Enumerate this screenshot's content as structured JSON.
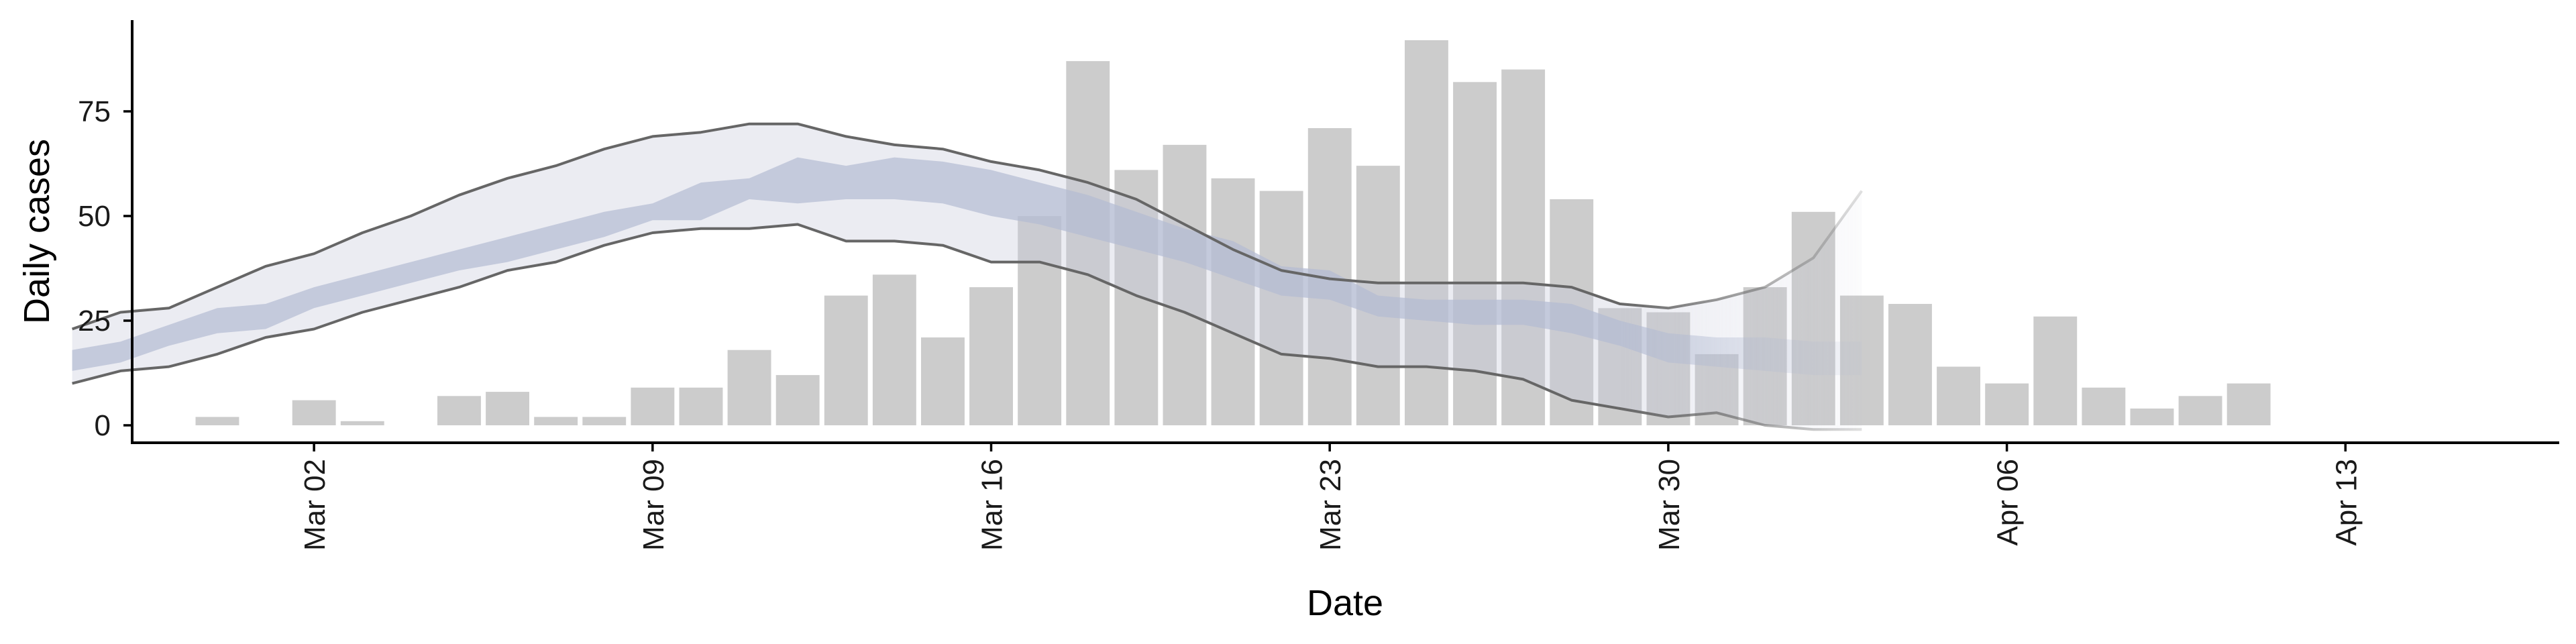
{
  "chart_data": {
    "type": "bar",
    "title": "",
    "xlabel": "Date",
    "ylabel": "Daily cases",
    "x_start_date": "2020-02-26",
    "ylim": [
      -4,
      95
    ],
    "xlim": [
      "2020-02-24",
      "2020-04-15"
    ],
    "y_ticks": [
      0,
      25,
      50,
      75
    ],
    "x_ticks": [
      {
        "date": "2020-03-02",
        "label": "Mar 02"
      },
      {
        "date": "2020-03-09",
        "label": "Mar 09"
      },
      {
        "date": "2020-03-16",
        "label": "Mar 16"
      },
      {
        "date": "2020-03-23",
        "label": "Mar 23"
      },
      {
        "date": "2020-03-30",
        "label": "Mar 30"
      },
      {
        "date": "2020-04-06",
        "label": "Apr 06"
      },
      {
        "date": "2020-04-13",
        "label": "Apr 13"
      }
    ],
    "grid": false,
    "legend": "none",
    "bars": {
      "name": "Daily cases",
      "color": "#cccccc",
      "dates": [
        "2020-02-29",
        "2020-03-01",
        "2020-03-02",
        "2020-03-03",
        "2020-03-04",
        "2020-03-05",
        "2020-03-06",
        "2020-03-07",
        "2020-03-08",
        "2020-03-09",
        "2020-03-10",
        "2020-03-11",
        "2020-03-12",
        "2020-03-13",
        "2020-03-14",
        "2020-03-15",
        "2020-03-16",
        "2020-03-17",
        "2020-03-18",
        "2020-03-19",
        "2020-03-20",
        "2020-03-21",
        "2020-03-22",
        "2020-03-23",
        "2020-03-24",
        "2020-03-25",
        "2020-03-26",
        "2020-03-27",
        "2020-03-28",
        "2020-03-29",
        "2020-03-30",
        "2020-03-31",
        "2020-04-01",
        "2020-04-02",
        "2020-04-03",
        "2020-04-04",
        "2020-04-05",
        "2020-04-06",
        "2020-04-07",
        "2020-04-08",
        "2020-04-09",
        "2020-04-10",
        "2020-04-11",
        "2020-04-12"
      ],
      "values": [
        2,
        0,
        6,
        1,
        0,
        7,
        8,
        2,
        2,
        9,
        9,
        18,
        12,
        31,
        36,
        21,
        33,
        50,
        87,
        61,
        67,
        59,
        56,
        71,
        62,
        92,
        82,
        85,
        54,
        28,
        27,
        17,
        33,
        51,
        31,
        29,
        14,
        10,
        26,
        9,
        4,
        7,
        10,
        0
      ]
    },
    "outer_band": {
      "color": "#c5c9db",
      "dates": [
        "2020-02-26",
        "2020-02-27",
        "2020-02-28",
        "2020-02-29",
        "2020-03-01",
        "2020-03-02",
        "2020-03-03",
        "2020-03-04",
        "2020-03-05",
        "2020-03-06",
        "2020-03-07",
        "2020-03-08",
        "2020-03-09",
        "2020-03-10",
        "2020-03-11",
        "2020-03-12",
        "2020-03-13",
        "2020-03-14",
        "2020-03-15",
        "2020-03-16",
        "2020-03-17",
        "2020-03-18",
        "2020-03-19",
        "2020-03-20",
        "2020-03-21",
        "2020-03-22",
        "2020-03-23",
        "2020-03-24",
        "2020-03-25",
        "2020-03-26",
        "2020-03-27",
        "2020-03-28",
        "2020-03-29",
        "2020-03-30",
        "2020-03-31",
        "2020-04-01",
        "2020-04-02",
        "2020-04-03"
      ],
      "upper": [
        23,
        27,
        28,
        33,
        38,
        41,
        46,
        50,
        55,
        59,
        62,
        66,
        69,
        70,
        72,
        72,
        69,
        67,
        66,
        63,
        61,
        58,
        54,
        48,
        42,
        37,
        35,
        34,
        34,
        34,
        34,
        33,
        29,
        28,
        30,
        33,
        40,
        56
      ],
      "lower": [
        10,
        13,
        14,
        17,
        21,
        23,
        27,
        30,
        33,
        37,
        39,
        43,
        46,
        47,
        47,
        48,
        44,
        44,
        43,
        39,
        39,
        36,
        31,
        27,
        22,
        17,
        16,
        14,
        14,
        13,
        11,
        6,
        4,
        2,
        3,
        0,
        -1,
        -1
      ]
    },
    "inner_band": {
      "color": "#b4bbd3",
      "dates": [
        "2020-02-26",
        "2020-02-27",
        "2020-02-28",
        "2020-02-29",
        "2020-03-01",
        "2020-03-02",
        "2020-03-03",
        "2020-03-04",
        "2020-03-05",
        "2020-03-06",
        "2020-03-07",
        "2020-03-08",
        "2020-03-09",
        "2020-03-10",
        "2020-03-11",
        "2020-03-12",
        "2020-03-13",
        "2020-03-14",
        "2020-03-15",
        "2020-03-16",
        "2020-03-17",
        "2020-03-18",
        "2020-03-19",
        "2020-03-20",
        "2020-03-21",
        "2020-03-22",
        "2020-03-23",
        "2020-03-24",
        "2020-03-25",
        "2020-03-26",
        "2020-03-27",
        "2020-03-28",
        "2020-03-29",
        "2020-03-30",
        "2020-03-31",
        "2020-04-01",
        "2020-04-02",
        "2020-04-03"
      ],
      "upper": [
        18,
        20,
        24,
        28,
        29,
        33,
        36,
        39,
        42,
        45,
        48,
        51,
        53,
        58,
        59,
        64,
        62,
        64,
        63,
        61,
        58,
        55,
        51,
        47,
        44,
        38,
        37,
        31,
        30,
        30,
        30,
        29,
        25,
        22,
        21,
        21,
        20,
        20
      ],
      "lower": [
        13,
        15,
        19,
        22,
        23,
        28,
        31,
        34,
        37,
        39,
        42,
        45,
        49,
        49,
        54,
        53,
        54,
        54,
        53,
        50,
        48,
        45,
        42,
        39,
        35,
        31,
        30,
        26,
        25,
        24,
        24,
        22,
        19,
        15,
        14,
        13,
        12,
        12
      ]
    },
    "line_color": "#666666",
    "band_fade_start_date": "2020-03-29"
  }
}
